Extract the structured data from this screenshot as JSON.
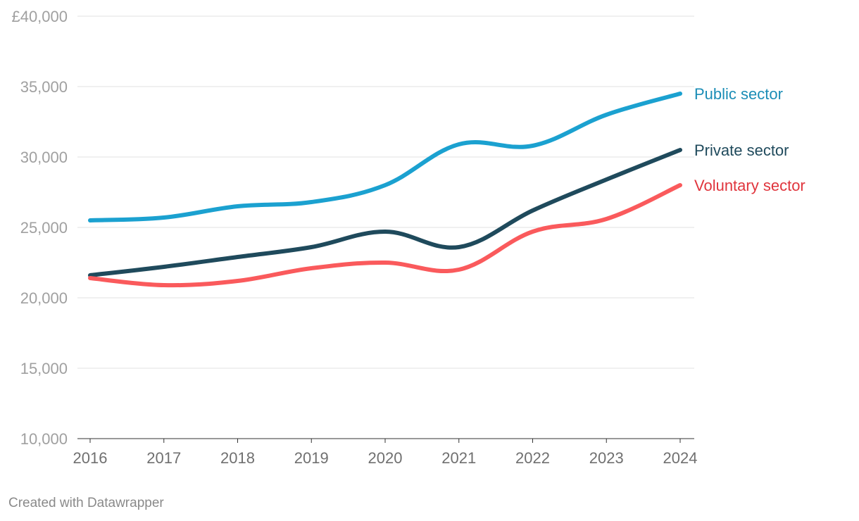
{
  "chart_data": {
    "type": "line",
    "title": "",
    "xlabel": "",
    "ylabel": "",
    "x": [
      "2016",
      "2017",
      "2018",
      "2019",
      "2020",
      "2021",
      "2022",
      "2023",
      "2024"
    ],
    "ylim": [
      10000,
      40000
    ],
    "yticks": [
      {
        "value": 40000,
        "label": "£40,000"
      },
      {
        "value": 35000,
        "label": "35,000"
      },
      {
        "value": 30000,
        "label": "30,000"
      },
      {
        "value": 25000,
        "label": "25,000"
      },
      {
        "value": 20000,
        "label": "20,000"
      },
      {
        "value": 15000,
        "label": "15,000"
      },
      {
        "value": 10000,
        "label": "10,000"
      }
    ],
    "grid": true,
    "series": [
      {
        "name": "Public sector",
        "color": "#1ba1d0",
        "label_color": "#1b8db6",
        "values": [
          25500,
          25700,
          26500,
          26800,
          28000,
          30900,
          30800,
          33000,
          34500
        ]
      },
      {
        "name": "Private sector",
        "color": "#1f4a5c",
        "label_color": "#1f4a5c",
        "values": [
          21600,
          22200,
          22900,
          23600,
          24700,
          23600,
          26200,
          28400,
          30500
        ]
      },
      {
        "name": "Voluntary sector",
        "color": "#fa5a5c",
        "label_color": "#e0353d",
        "values": [
          21400,
          20900,
          21200,
          22100,
          22500,
          22000,
          24700,
          25600,
          28000
        ]
      }
    ]
  },
  "footer": {
    "credit": "Created with Datawrapper"
  }
}
